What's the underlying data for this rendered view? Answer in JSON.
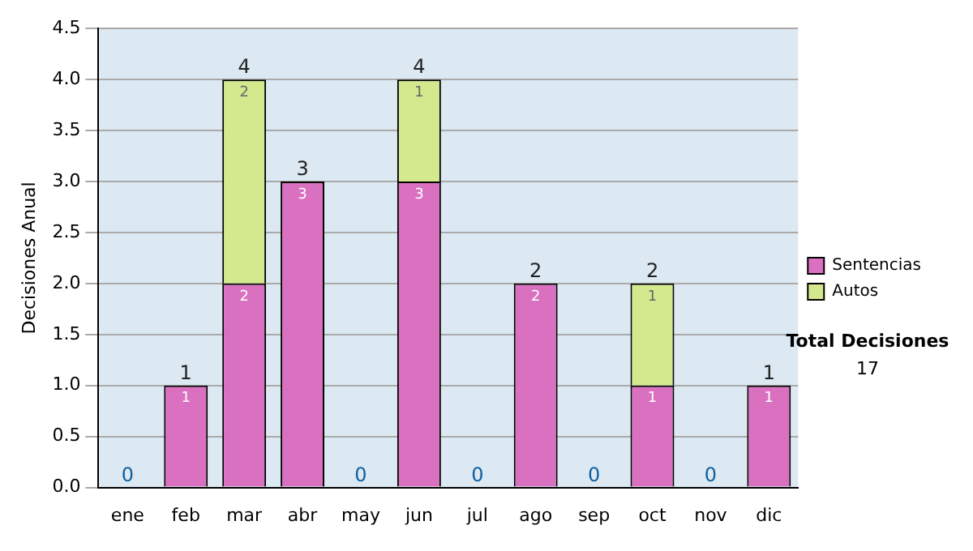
{
  "chart_data": {
    "type": "bar",
    "stacked": true,
    "ylabel": "Decisiones Anual",
    "categories": [
      "ene",
      "feb",
      "mar",
      "abr",
      "may",
      "jun",
      "jul",
      "ago",
      "sep",
      "oct",
      "nov",
      "dic"
    ],
    "series": [
      {
        "name": "Sentencias",
        "color": "#d970c0",
        "values": [
          0,
          1,
          2,
          3,
          0,
          3,
          0,
          2,
          0,
          1,
          0,
          1
        ],
        "value_labels": [
          null,
          "1",
          "2",
          "3",
          null,
          "3",
          null,
          "2",
          null,
          "1",
          null,
          "1"
        ]
      },
      {
        "name": "Autos",
        "color": "#d4e88e",
        "values": [
          0,
          0,
          2,
          0,
          0,
          1,
          0,
          0,
          0,
          1,
          0,
          0
        ],
        "value_labels": [
          null,
          null,
          "2",
          null,
          null,
          "1",
          null,
          null,
          null,
          "1",
          null,
          null
        ]
      }
    ],
    "ylim": [
      0,
      4.5
    ],
    "yticks": [
      {
        "value": 0,
        "label": "0.0"
      },
      {
        "value": 0.5,
        "label": "0.5"
      },
      {
        "value": 1,
        "label": "1.0"
      },
      {
        "value": 1.5,
        "label": "1.5"
      },
      {
        "value": 2,
        "label": "2.0"
      },
      {
        "value": 2.5,
        "label": "2.5"
      },
      {
        "value": 3,
        "label": "3.0"
      },
      {
        "value": 3.5,
        "label": "3.5"
      },
      {
        "value": 4,
        "label": "4.0"
      },
      {
        "value": 4.5,
        "label": "4.5"
      }
    ],
    "grid": "y",
    "legend": "right",
    "totals": [
      "0",
      "1",
      "4",
      "3",
      "0",
      "4",
      "0",
      "2",
      "0",
      "2",
      "0",
      "1"
    ],
    "annotations": [
      "Total Decisiones",
      "17"
    ]
  }
}
